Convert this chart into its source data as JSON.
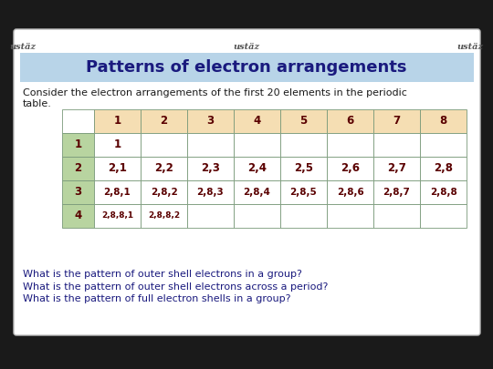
{
  "title": "Patterns of electron arrangements",
  "title_bg": "#b8d4e8",
  "title_color": "#1a1a7e",
  "intro_text1": "Consider the electron arrangements of the first 20 elements in the periodic",
  "intro_text2": "table.",
  "intro_color": "#1a1a1a",
  "col_headers": [
    "",
    "1",
    "2",
    "3",
    "4",
    "5",
    "6",
    "7",
    "8"
  ],
  "col_header_bg": "#f5deb3",
  "row_headers": [
    "1",
    "2",
    "3",
    "4"
  ],
  "row_header_bg": "#b8d4a0",
  "table_data": [
    [
      "1",
      "",
      "",
      "",
      "",
      "",
      "",
      ""
    ],
    [
      "2,1",
      "2,2",
      "2,3",
      "2,4",
      "2,5",
      "2,6",
      "2,7",
      "2,8"
    ],
    [
      "2,8,1",
      "2,8,2",
      "2,8,3",
      "2,8,4",
      "2,8,5",
      "2,8,6",
      "2,8,7",
      "2,8,8"
    ],
    [
      "2,8,8,1",
      "2,8,8,2",
      "",
      "",
      "",
      "",
      "",
      ""
    ]
  ],
  "table_border_color": "#7a9a7a",
  "table_text_color": "#5a0000",
  "cell_bg": "#ffffff",
  "questions": [
    "What is the pattern of outer shell electrons in a group?",
    "What is the pattern of outer shell electrons across a period?",
    "What is the pattern of full electron shells in a group?"
  ],
  "question_color": "#1a1a7e",
  "slide_bg": "#ffffff",
  "outer_bg": "#1a1a1a",
  "watermark": "ustäz"
}
